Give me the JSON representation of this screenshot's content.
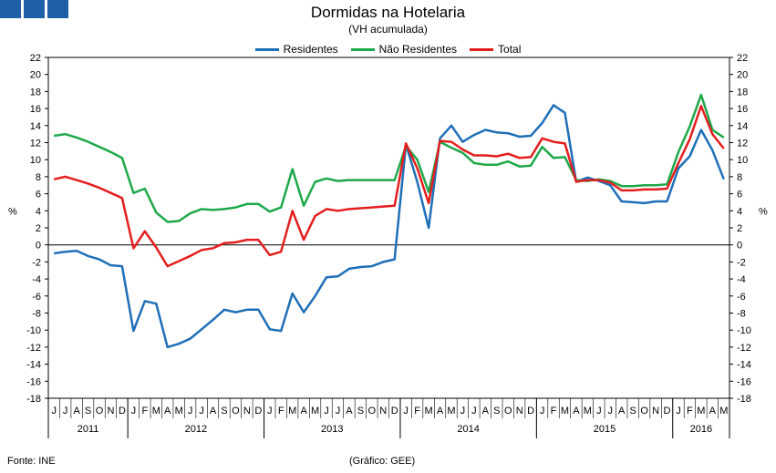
{
  "header": {
    "title": "Dormidas na Hotelaria",
    "subtitle": "(VH acumulada)"
  },
  "footer": {
    "source": "Fonte: INE",
    "credit": "(Gráfico: GEE)"
  },
  "chart_data": {
    "type": "line",
    "title": "Dormidas na Hotelaria",
    "subtitle": "(VH acumulada)",
    "ylabel": "%",
    "ylim": [
      -18,
      22
    ],
    "yticks": [
      22,
      20,
      18,
      16,
      14,
      12,
      10,
      8,
      6,
      4,
      2,
      0,
      -2,
      -4,
      -6,
      -8,
      -10,
      -12,
      -14,
      -16,
      -18
    ],
    "grid": false,
    "legend_position": "top-center",
    "categories": [
      "J",
      "J",
      "A",
      "S",
      "O",
      "N",
      "D",
      "J",
      "F",
      "M",
      "A",
      "M",
      "J",
      "J",
      "A",
      "S",
      "O",
      "N",
      "D",
      "J",
      "F",
      "M",
      "A",
      "M",
      "J",
      "J",
      "A",
      "S",
      "O",
      "N",
      "D",
      "J",
      "F",
      "M",
      "A",
      "M",
      "J",
      "J",
      "A",
      "S",
      "O",
      "N",
      "D",
      "J",
      "F",
      "M",
      "A",
      "M",
      "J",
      "J",
      "A",
      "S",
      "O",
      "N",
      "D",
      "J",
      "F",
      "M",
      "A",
      "M"
    ],
    "years": [
      {
        "label": "2011",
        "start": 0,
        "end": 7
      },
      {
        "label": "2012",
        "start": 7,
        "end": 19
      },
      {
        "label": "2013",
        "start": 19,
        "end": 31
      },
      {
        "label": "2014",
        "start": 31,
        "end": 43
      },
      {
        "label": "2015",
        "start": 43,
        "end": 55
      },
      {
        "label": "2016",
        "start": 55,
        "end": 60
      }
    ],
    "series": [
      {
        "name": "Residentes",
        "color": "#1f6fb8",
        "values": [
          -1.0,
          -0.8,
          -0.7,
          -1.3,
          -1.7,
          -2.4,
          -2.5,
          -10.1,
          -6.6,
          -6.9,
          -12.0,
          -11.6,
          -11.0,
          -9.9,
          -8.8,
          -7.6,
          -7.9,
          -7.6,
          -7.6,
          -9.9,
          -10.1,
          -5.7,
          -7.9,
          -6.0,
          -3.8,
          -3.7,
          -2.8,
          -2.6,
          -2.5,
          -2.0,
          -1.7,
          11.8,
          7.4,
          2.0,
          12.5,
          14.0,
          12.1,
          12.9,
          13.5,
          13.2,
          13.1,
          12.7,
          12.8,
          14.3,
          16.4,
          15.5,
          7.4,
          7.9,
          7.5,
          7.0,
          5.1,
          5.0,
          4.9,
          5.1,
          5.1,
          9.0,
          10.4,
          13.5,
          11.1,
          7.7
        ]
      },
      {
        "name": "Não Residentes",
        "color": "#1fa84a",
        "values": [
          12.8,
          13.0,
          12.6,
          12.1,
          11.5,
          10.9,
          10.2,
          6.1,
          6.6,
          3.8,
          2.7,
          2.8,
          3.7,
          4.2,
          4.1,
          4.2,
          4.4,
          4.8,
          4.8,
          3.9,
          4.4,
          8.9,
          4.6,
          7.4,
          7.8,
          7.5,
          7.6,
          7.6,
          7.6,
          7.6,
          7.6,
          11.6,
          10.0,
          6.2,
          12.1,
          11.4,
          10.8,
          9.6,
          9.4,
          9.4,
          9.8,
          9.2,
          9.3,
          11.5,
          10.2,
          10.3,
          7.6,
          7.5,
          7.7,
          7.5,
          6.9,
          6.9,
          7.0,
          7.0,
          7.1,
          10.9,
          13.9,
          17.6,
          13.5,
          12.6
        ]
      },
      {
        "name": "Total",
        "color": "#e41e1e",
        "values": [
          7.7,
          8.0,
          7.6,
          7.2,
          6.7,
          6.1,
          5.5,
          -0.4,
          1.6,
          -0.3,
          -2.5,
          -1.9,
          -1.3,
          -0.6,
          -0.4,
          0.2,
          0.3,
          0.6,
          0.6,
          -1.2,
          -0.8,
          4.0,
          0.6,
          3.4,
          4.2,
          4.0,
          4.2,
          4.3,
          4.4,
          4.5,
          4.6,
          11.9,
          9.0,
          4.9,
          12.2,
          12.1,
          11.2,
          10.5,
          10.5,
          10.4,
          10.7,
          10.2,
          10.3,
          12.5,
          12.1,
          11.9,
          7.4,
          7.6,
          7.6,
          7.3,
          6.4,
          6.4,
          6.5,
          6.5,
          6.6,
          9.6,
          12.4,
          16.3,
          13.0,
          11.3
        ]
      }
    ]
  }
}
